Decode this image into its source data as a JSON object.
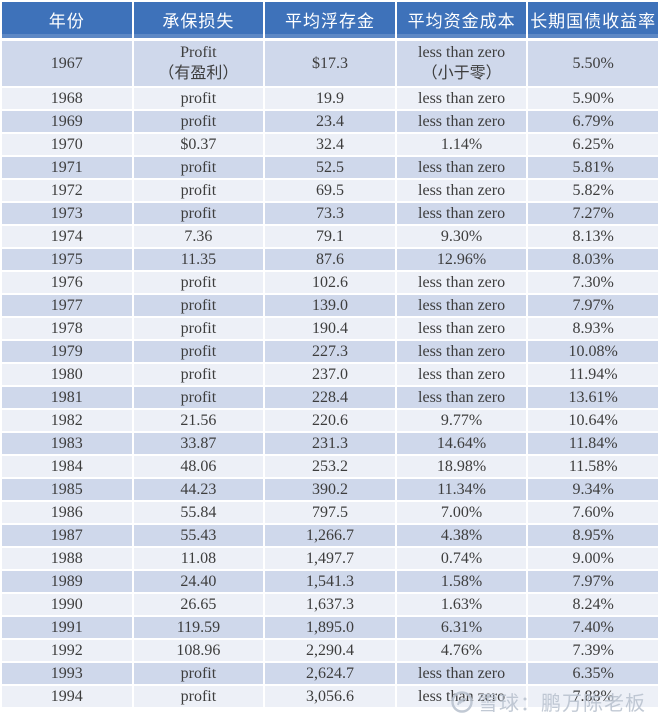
{
  "chart_data": {
    "type": "table",
    "columns": [
      "年份",
      "承保损失",
      "平均浮存金",
      "平均资金成本",
      "长期国债收益率"
    ],
    "rows": [
      [
        "1967",
        "Profit\n（有盈利）",
        "$17.3",
        "less than zero\n（小于零）",
        "5.50%"
      ],
      [
        "1968",
        "profit",
        "19.9",
        "less than zero",
        "5.90%"
      ],
      [
        "1969",
        "profit",
        "23.4",
        "less than zero",
        "6.79%"
      ],
      [
        "1970",
        "$0.37",
        "32.4",
        "1.14%",
        "6.25%"
      ],
      [
        "1971",
        "profit",
        "52.5",
        "less than zero",
        "5.81%"
      ],
      [
        "1972",
        "profit",
        "69.5",
        "less than zero",
        "5.82%"
      ],
      [
        "1973",
        "profit",
        "73.3",
        "less than zero",
        "7.27%"
      ],
      [
        "1974",
        "7.36",
        "79.1",
        "9.30%",
        "8.13%"
      ],
      [
        "1975",
        "11.35",
        "87.6",
        "12.96%",
        "8.03%"
      ],
      [
        "1976",
        "profit",
        "102.6",
        "less than zero",
        "7.30%"
      ],
      [
        "1977",
        "profit",
        "139.0",
        "less than zero",
        "7.97%"
      ],
      [
        "1978",
        "profit",
        "190.4",
        "less than zero",
        "8.93%"
      ],
      [
        "1979",
        "profit",
        "227.3",
        "less than zero",
        "10.08%"
      ],
      [
        "1980",
        "profit",
        "237.0",
        "less than zero",
        "11.94%"
      ],
      [
        "1981",
        "profit",
        "228.4",
        "less than zero",
        "13.61%"
      ],
      [
        "1982",
        "21.56",
        "220.6",
        "9.77%",
        "10.64%"
      ],
      [
        "1983",
        "33.87",
        "231.3",
        "14.64%",
        "11.84%"
      ],
      [
        "1984",
        "48.06",
        "253.2",
        "18.98%",
        "11.58%"
      ],
      [
        "1985",
        "44.23",
        "390.2",
        "11.34%",
        "9.34%"
      ],
      [
        "1986",
        "55.84",
        "797.5",
        "7.00%",
        "7.60%"
      ],
      [
        "1987",
        "55.43",
        "1,266.7",
        "4.38%",
        "8.95%"
      ],
      [
        "1988",
        "11.08",
        "1,497.7",
        "0.74%",
        "9.00%"
      ],
      [
        "1989",
        "24.40",
        "1,541.3",
        "1.58%",
        "7.97%"
      ],
      [
        "1990",
        "26.65",
        "1,637.3",
        "1.63%",
        "8.24%"
      ],
      [
        "1991",
        "119.59",
        "1,895.0",
        "6.31%",
        "7.40%"
      ],
      [
        "1992",
        "108.96",
        "2,290.4",
        "4.76%",
        "7.39%"
      ],
      [
        "1993",
        "profit",
        "2,624.7",
        "less than zero",
        "6.35%"
      ],
      [
        "1994",
        "profit",
        "3,056.6",
        "less than zero",
        "7.88%"
      ]
    ]
  },
  "watermark": {
    "text": "雪球：鹏万陈老板",
    "icon": "xueqiu-snowball-logo"
  },
  "colors": {
    "header_bg": "#3E72BA",
    "header_text": "#FFFFFF",
    "row_band_dark": "#CFD8EB",
    "row_band_light": "#EDF0F7",
    "body_text": "#3D3D3D",
    "watermark_gray": "#B9C2CF"
  }
}
